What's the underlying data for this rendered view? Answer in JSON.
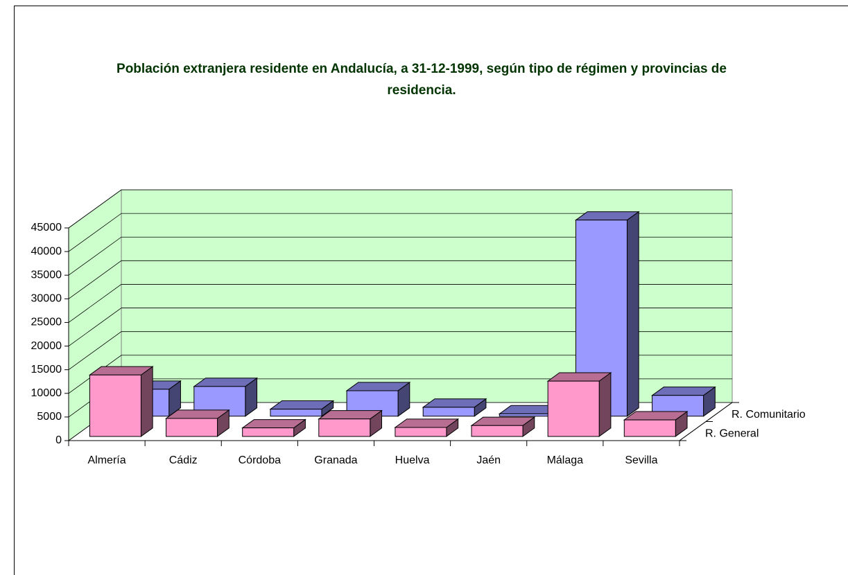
{
  "chart_data": {
    "type": "bar3d",
    "title": "Población extranjera residente en Andalucía, a 31-12-1999, según tipo de régimen y provincias de residencia.",
    "categories": [
      "Almería",
      "Cádiz",
      "Córdoba",
      "Granada",
      "Huelva",
      "Jaén",
      "Málaga",
      "Sevilla"
    ],
    "series": [
      {
        "name": "R. General",
        "color": "#ff99cc",
        "values": [
          13000,
          3800,
          1800,
          3700,
          1900,
          2300,
          11700,
          3500
        ]
      },
      {
        "name": "R. Comunitario",
        "color": "#9999ff",
        "values": [
          5700,
          6300,
          1500,
          5400,
          1900,
          500,
          41500,
          4400
        ]
      }
    ],
    "ylim": [
      0,
      45000
    ],
    "yticks": [
      0,
      5000,
      10000,
      15000,
      20000,
      25000,
      30000,
      35000,
      40000,
      45000
    ],
    "grid": true,
    "wall_color": "#ccffcc"
  }
}
